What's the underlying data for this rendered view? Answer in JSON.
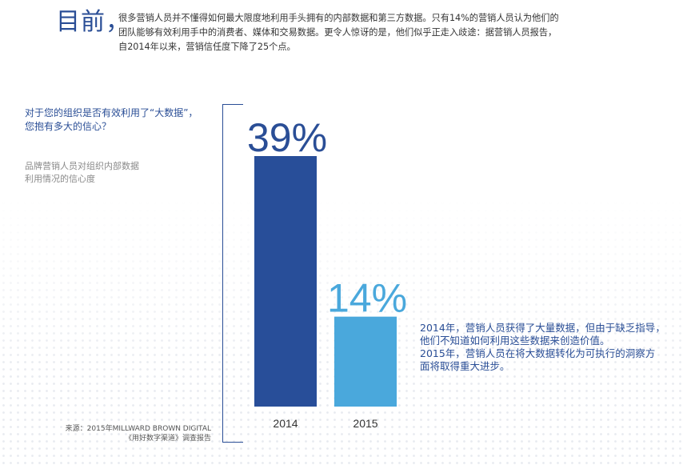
{
  "header": {
    "title": "目前，",
    "body": "很多营销人员并不懂得如何最大限度地利用手头拥有的内部数据和第三方数据。只有14%的营销人员认为他们的\n团队能够有效利用手中的消费者、媒体和交易数据。更令人惊讶的是，他们似乎正走入歧途：据营销人员报告，\n自2014年以来，营销信任度下降了25个点。"
  },
  "left_panel": {
    "question": "对于您的组织是否有效利用了“大数据”，\n您抱有多大的信心？",
    "subtitle": "品牌营销人员对组织内部数据\n利用情况的信心度",
    "source": "来源：2015年MILLWARD BROWN DIGITAL\n《用好数字渠道》调查报告"
  },
  "note": "2014年，营销人员获得了大量数据，但由于缺乏指导，\n他们不知道如何利用这些数据来创造价值。\n2015年，营销人员在将大数据转化为可执行的洞察方\n面将取得重大进步。",
  "colors": {
    "bar_2014": "#284e99",
    "bar_2015": "#4aa8dc",
    "label_2014": "#2a4e96",
    "label_2015": "#4aa8dc",
    "axis_label": "#333333"
  },
  "chart_data": {
    "type": "bar",
    "title": "对于您的组织是否有效利用了“大数据”，您抱有多大的信心？",
    "subtitle": "品牌营销人员对组织内部数据利用情况的信心度",
    "categories": [
      "2014",
      "2015"
    ],
    "values": [
      39,
      14
    ],
    "value_labels": [
      "39%",
      "14%"
    ],
    "ylim": [
      0,
      39
    ],
    "xlabel": "",
    "ylabel": "",
    "grid": false
  }
}
